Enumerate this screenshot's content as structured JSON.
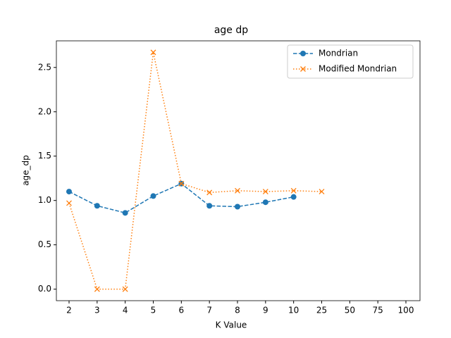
{
  "chart_data": {
    "type": "line",
    "title": "age dp",
    "x_label": "K Value",
    "y_label": "age_dp",
    "categories": [
      "2",
      "3",
      "4",
      "5",
      "6",
      "7",
      "8",
      "9",
      "10",
      "25",
      "50",
      "75",
      "100"
    ],
    "series": [
      {
        "name": "Mondrian",
        "color": "#1f77b4",
        "marker": "circle",
        "linestyle": "dashed",
        "values": [
          1.1,
          0.94,
          0.86,
          1.05,
          1.19,
          0.94,
          0.93,
          0.98,
          1.04,
          null,
          null,
          null,
          null
        ]
      },
      {
        "name": "Modified Mondrian",
        "color": "#ff7f0e",
        "marker": "x",
        "linestyle": "dotted",
        "values": [
          0.97,
          0,
          0,
          2.67,
          1.19,
          1.09,
          1.11,
          1.1,
          1.11,
          1.1,
          null,
          null,
          null
        ]
      }
    ],
    "ylim": [
      -0.13,
      2.8
    ],
    "yticks": [
      {
        "value": 0,
        "label": "0.0"
      },
      0.5,
      {
        "value": 1,
        "label": "1.0"
      },
      1.5,
      {
        "value": 2,
        "label": "2.0"
      },
      2.5
    ],
    "legend": "upper right",
    "grid": false
  }
}
